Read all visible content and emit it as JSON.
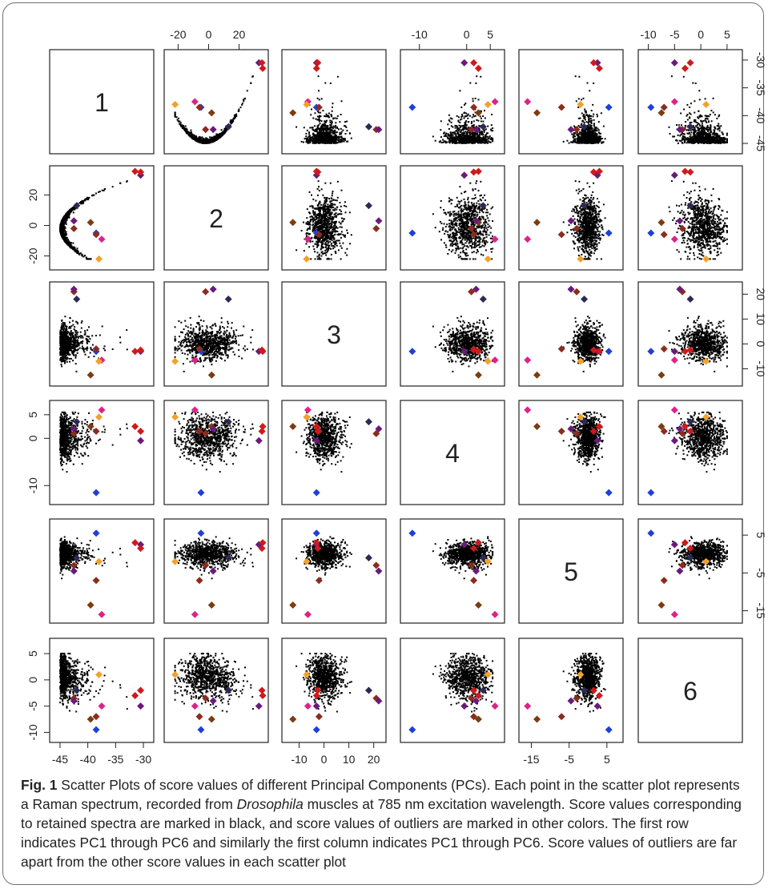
{
  "caption": {
    "label": "Fig. 1",
    "text_a": "Scatter Plots of score values of different Principal Components (PCs). Each point in the scatter plot represents a Raman spectrum, recorded from ",
    "species": "Drosophila",
    "text_b": " muscles at 785 nm excitation wavelength. Score values corresponding to retained spectra are marked in black, and score values of outliers are marked in other colors. The first row indicates PC1 through PC6 and similarly the first column indicates PC1 through PC6. Score values of outliers are far apart from the other score values in each scatter plot"
  },
  "colors": {
    "retained": "#000000",
    "outliers": [
      "#e0218a",
      "#1f3fd6",
      "#f2a22a",
      "#7a3d12",
      "#6a1b7a",
      "#d0191b",
      "#8b2c1c",
      "#2a2a55"
    ]
  },
  "chart_data": {
    "type": "scatter",
    "title": "",
    "diagonal_labels": [
      "1",
      "2",
      "3",
      "4",
      "5",
      "6"
    ],
    "variables": [
      "PC1",
      "PC2",
      "PC3",
      "PC4",
      "PC5",
      "PC6"
    ],
    "ranges": [
      [
        -46,
        -29
      ],
      [
        -26,
        36
      ],
      [
        -15,
        23
      ],
      [
        -13,
        7
      ],
      [
        -17,
        8
      ],
      [
        -11,
        7
      ]
    ],
    "tick_values": [
      [
        -45,
        -40,
        -35,
        -30
      ],
      [
        -20,
        0,
        20
      ],
      [
        -10,
        0,
        10,
        20
      ],
      [
        -10,
        -5,
        0,
        5
      ],
      [
        -15,
        -10,
        -5,
        0,
        5
      ],
      [
        -10,
        -5,
        0,
        5
      ]
    ],
    "axis_ticks": {
      "top": [
        {
          "column": 2,
          "labels": [
            "-20",
            "0",
            "20"
          ],
          "values": [
            -20,
            0,
            20
          ]
        },
        {
          "column": 4,
          "labels": [
            "-10",
            "0",
            "5"
          ],
          "values": [
            -10,
            0,
            5
          ]
        },
        {
          "column": 6,
          "labels": [
            "-10",
            "-5",
            "0",
            "5"
          ],
          "values": [
            -10,
            -5,
            0,
            5
          ]
        }
      ],
      "bottom": [
        {
          "column": 1,
          "labels": [
            "-45",
            "-40",
            "-35",
            "-30"
          ],
          "values": [
            -45,
            -40,
            -35,
            -30
          ]
        },
        {
          "column": 3,
          "labels": [
            "-10",
            "0",
            "10",
            "20"
          ],
          "values": [
            -10,
            0,
            10,
            20
          ]
        },
        {
          "column": 5,
          "labels": [
            "-15",
            "-5",
            "5"
          ],
          "values": [
            -15,
            -5,
            5
          ]
        }
      ],
      "left": [
        {
          "row": 2,
          "labels": [
            "-20",
            "0",
            "20"
          ],
          "values": [
            -20,
            0,
            20
          ]
        },
        {
          "row": 4,
          "labels": [
            "-10",
            "0",
            "5"
          ],
          "values": [
            -10,
            0,
            5
          ]
        },
        {
          "row": 6,
          "labels": [
            "-10",
            "-5",
            "0",
            "5"
          ],
          "values": [
            -10,
            -5,
            0,
            5
          ]
        }
      ],
      "right": [
        {
          "row": 1,
          "labels": [
            "-45",
            "-40",
            "-35",
            "-30"
          ],
          "values": [
            -45,
            -40,
            -35,
            -30
          ]
        },
        {
          "row": 3,
          "labels": [
            "-10",
            "0",
            "10",
            "20"
          ],
          "values": [
            -10,
            0,
            10,
            20
          ]
        },
        {
          "row": 5,
          "labels": [
            "-15",
            "-5",
            "5"
          ],
          "values": [
            -15,
            -5,
            5
          ]
        }
      ]
    },
    "outliers": [
      {
        "color": "#e0218a",
        "pcs": [
          -37.5,
          -9,
          -6.5,
          6,
          -16,
          -5
        ]
      },
      {
        "color": "#1f3fd6",
        "pcs": [
          -38.5,
          -5,
          -3,
          -11.5,
          5.5,
          -9.5
        ]
      },
      {
        "color": "#f2a22a",
        "pcs": [
          -38,
          -22,
          -7,
          4.5,
          -2,
          1
        ]
      },
      {
        "color": "#7a3d12",
        "pcs": [
          -39.5,
          2,
          -12.5,
          2.5,
          -13.5,
          -7.5
        ]
      },
      {
        "color": "#8b2c1c",
        "pcs": [
          -38.5,
          -6,
          -2,
          1.5,
          -7,
          -7
        ]
      },
      {
        "color": "#6a1b7a",
        "pcs": [
          -30.5,
          33,
          -3,
          -0.5,
          2.5,
          -5
        ]
      },
      {
        "color": "#d0191b",
        "pcs": [
          -30.5,
          35,
          -2.5,
          1.5,
          1.5,
          -2
        ]
      },
      {
        "color": "#d0191b",
        "pcs": [
          -31.5,
          35.5,
          -3,
          2.5,
          3,
          -3
        ]
      },
      {
        "color": "#2a2a55",
        "pcs": [
          -42,
          13,
          18,
          3.5,
          -1,
          -2
        ]
      },
      {
        "color": "#8b2c1c",
        "pcs": [
          -42.5,
          -2,
          21,
          1,
          -3,
          -3.5
        ]
      },
      {
        "color": "#6a1b7a",
        "pcs": [
          -42.5,
          3,
          22,
          2,
          -4.5,
          -4
        ]
      }
    ]
  }
}
